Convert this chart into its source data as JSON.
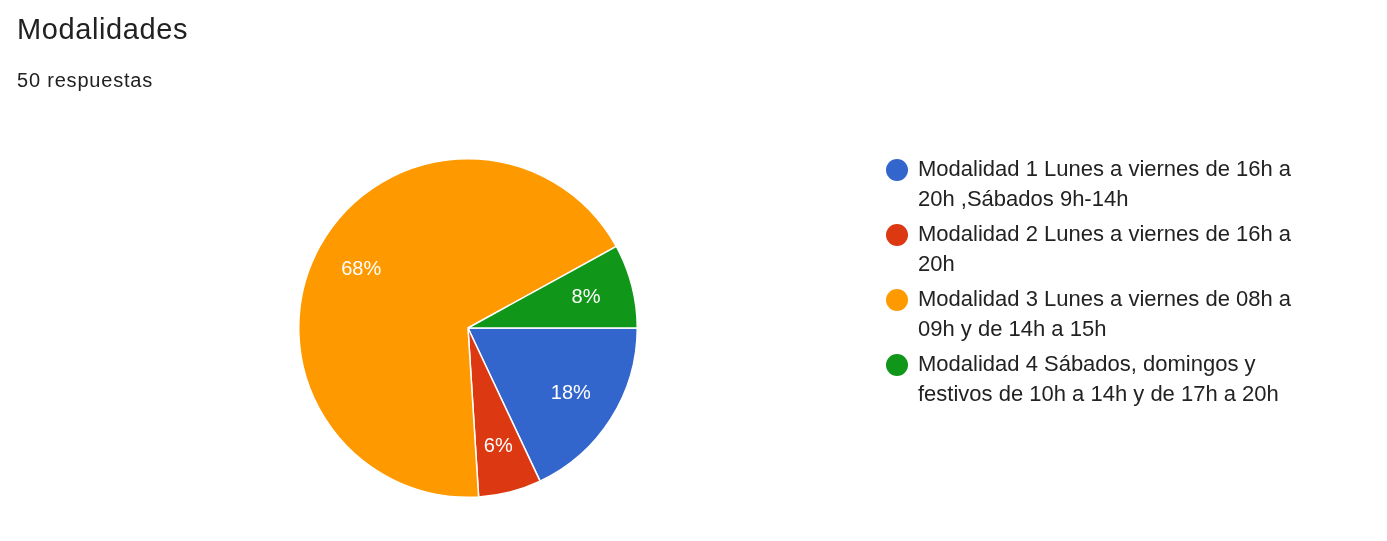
{
  "chart_data": {
    "type": "pie",
    "title": "Modalidades",
    "subtitle": "50 respuestas",
    "categories": [
      "Modalidad 1 Lunes a viernes de 16h a 20h ,Sábados 9h-14h",
      "Modalidad 2 Lunes a viernes de 16h a 20h",
      "Modalidad 3 Lunes a viernes de 08h a 09h y de 14h a 15h",
      "Modalidad 4 Sábados, domingos y festivos de 10h a 14h y de 17h a 20h"
    ],
    "values": [
      18,
      6,
      68,
      8
    ],
    "value_labels": [
      "18%",
      "6%",
      "68%",
      "8%"
    ],
    "colors": [
      "#3366cc",
      "#dc3912",
      "#ff9900",
      "#109618"
    ],
    "legend": "right"
  }
}
